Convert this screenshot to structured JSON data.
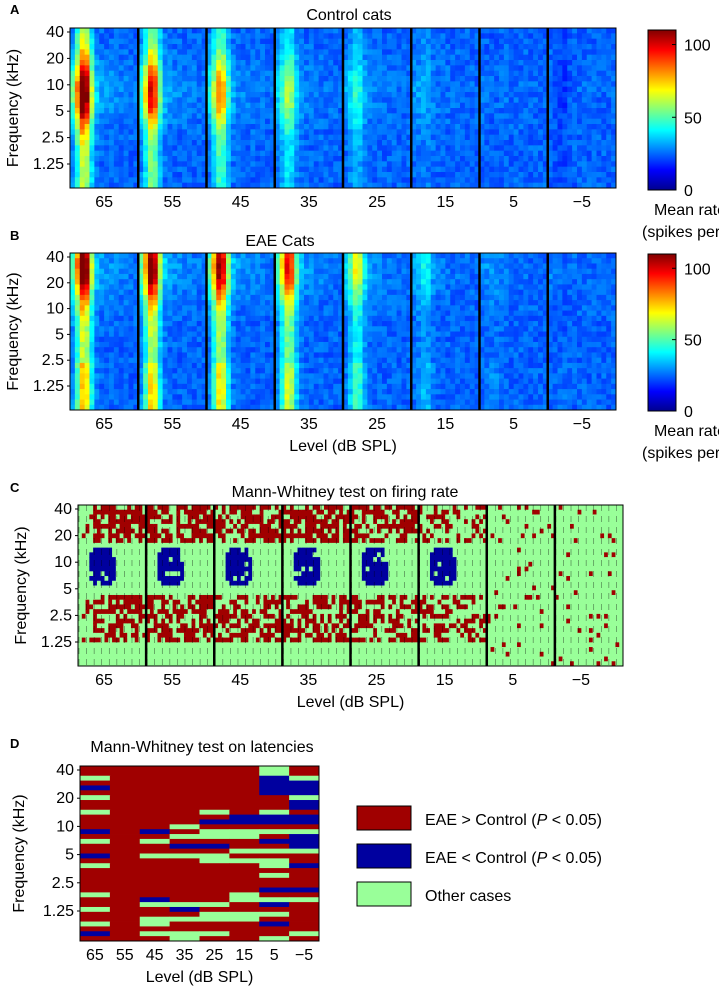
{
  "figure": {
    "panel_labels": [
      "A",
      "B",
      "C",
      "D"
    ]
  },
  "chart_data": [
    {
      "type": "heatmap",
      "panel": "A",
      "title": "Control cats",
      "xlabel": "",
      "ylabel": "Frequency (kHz)",
      "x_ticks": [
        "65",
        "55",
        "45",
        "35",
        "25",
        "15",
        "5",
        "−5"
      ],
      "y_ticks": [
        "40",
        "20",
        "10",
        "5",
        "2.5",
        "1.25"
      ],
      "levels_db_spl": [
        65,
        55,
        45,
        35,
        25,
        15,
        5,
        -5
      ],
      "freq_ticks_khz": [
        40,
        20,
        10,
        5,
        2.5,
        1.25
      ],
      "colorbar": {
        "range": [
          0,
          110
        ],
        "ticks": [
          "0",
          "50",
          "100"
        ],
        "label_line1": "Mean rate",
        "label_line2": "(spikes per s)"
      },
      "peak_rate_by_level": [
        110,
        90,
        75,
        55,
        40,
        28,
        20,
        15
      ],
      "peak_frequency_khz_by_level": [
        10,
        10,
        10,
        10,
        12,
        12,
        10,
        10
      ]
    },
    {
      "type": "heatmap",
      "panel": "B",
      "title": "EAE Cats",
      "xlabel": "Level (dB SPL)",
      "ylabel": "Frequency (kHz)",
      "x_ticks": [
        "65",
        "55",
        "45",
        "35",
        "25",
        "15",
        "5",
        "−5"
      ],
      "y_ticks": [
        "40",
        "20",
        "10",
        "5",
        "2.5",
        "1.25"
      ],
      "levels_db_spl": [
        65,
        55,
        45,
        35,
        25,
        15,
        5,
        -5
      ],
      "freq_ticks_khz": [
        40,
        20,
        10,
        5,
        2.5,
        1.25
      ],
      "colorbar": {
        "range": [
          0,
          110
        ],
        "ticks": [
          "0",
          "50",
          "100"
        ],
        "label_line1": "Mean rate",
        "label_line2": "(spikes per s)"
      },
      "peak_rate_by_level": [
        110,
        105,
        100,
        90,
        60,
        35,
        25,
        20
      ],
      "peak_frequency_khz_by_level": [
        30,
        30,
        30,
        30,
        30,
        30,
        30,
        30
      ]
    },
    {
      "type": "heatmap",
      "panel": "C",
      "title": "Mann-Whitney test on firing rate",
      "xlabel": "Level (dB SPL)",
      "ylabel": "Frequency (kHz)",
      "x_ticks": [
        "65",
        "55",
        "45",
        "35",
        "25",
        "15",
        "5",
        "−5"
      ],
      "y_ticks": [
        "40",
        "20",
        "10",
        "5",
        "2.5",
        "1.25"
      ],
      "levels_db_spl": [
        65,
        55,
        45,
        35,
        25,
        15,
        5,
        -5
      ],
      "categories": [
        "EAE > Control (P < 0.05)",
        "EAE < Control (P < 0.05)",
        "Other cases"
      ]
    },
    {
      "type": "heatmap",
      "panel": "D",
      "title": "Mann-Whitney test on latencies",
      "xlabel": "Level (dB SPL)",
      "ylabel": "Frequency (kHz)",
      "x_ticks": [
        "65",
        "55",
        "45",
        "35",
        "25",
        "15",
        "5",
        "−5"
      ],
      "y_ticks": [
        "40",
        "20",
        "10",
        "5",
        "2.5",
        "1.25"
      ],
      "levels_db_spl": [
        65,
        55,
        45,
        35,
        25,
        15,
        5,
        -5
      ],
      "categories": [
        "EAE > Control (P < 0.05)",
        "EAE < Control (P < 0.05)",
        "Other cases"
      ],
      "rows_top_to_bottom_codes": "0 = EAE>Control, 1 = EAE<Control, 2 = other",
      "grid": [
        [
          0,
          0,
          0,
          0,
          0,
          0,
          2,
          0
        ],
        [
          0,
          0,
          0,
          0,
          0,
          0,
          2,
          0
        ],
        [
          2,
          0,
          0,
          0,
          0,
          0,
          1,
          2
        ],
        [
          0,
          0,
          0,
          0,
          0,
          0,
          1,
          1
        ],
        [
          1,
          0,
          0,
          0,
          0,
          0,
          1,
          1
        ],
        [
          0,
          0,
          0,
          0,
          0,
          0,
          1,
          1
        ],
        [
          2,
          0,
          0,
          0,
          0,
          0,
          0,
          2
        ],
        [
          0,
          0,
          0,
          0,
          0,
          0,
          0,
          1
        ],
        [
          0,
          0,
          0,
          0,
          0,
          0,
          0,
          1
        ],
        [
          2,
          0,
          0,
          0,
          2,
          0,
          2,
          0
        ],
        [
          0,
          0,
          0,
          0,
          0,
          1,
          1,
          1
        ],
        [
          0,
          0,
          0,
          0,
          1,
          1,
          1,
          1
        ],
        [
          0,
          0,
          0,
          2,
          0,
          0,
          0,
          0
        ],
        [
          1,
          0,
          1,
          0,
          2,
          2,
          2,
          2
        ],
        [
          0,
          0,
          0,
          2,
          2,
          2,
          0,
          1
        ],
        [
          2,
          0,
          2,
          0,
          0,
          0,
          1,
          1
        ],
        [
          0,
          0,
          0,
          1,
          1,
          0,
          0,
          1
        ],
        [
          0,
          0,
          0,
          0,
          0,
          2,
          2,
          2
        ],
        [
          1,
          0,
          2,
          2,
          2,
          0,
          0,
          0
        ],
        [
          0,
          0,
          0,
          0,
          2,
          2,
          2,
          0
        ],
        [
          2,
          0,
          0,
          0,
          0,
          0,
          2,
          1
        ],
        [
          0,
          0,
          0,
          0,
          0,
          0,
          0,
          0
        ],
        [
          0,
          0,
          0,
          0,
          0,
          0,
          2,
          0
        ],
        [
          0,
          0,
          0,
          0,
          0,
          0,
          0,
          0
        ],
        [
          0,
          0,
          0,
          0,
          0,
          0,
          0,
          0
        ],
        [
          0,
          0,
          0,
          0,
          0,
          0,
          1,
          1
        ],
        [
          2,
          0,
          0,
          0,
          0,
          2,
          0,
          0
        ],
        [
          0,
          0,
          1,
          0,
          0,
          2,
          2,
          2
        ],
        [
          0,
          0,
          2,
          2,
          2,
          0,
          1,
          0
        ],
        [
          2,
          0,
          0,
          1,
          0,
          0,
          0,
          0
        ],
        [
          0,
          0,
          0,
          0,
          2,
          2,
          2,
          0
        ],
        [
          0,
          0,
          2,
          2,
          2,
          2,
          0,
          0
        ],
        [
          2,
          0,
          2,
          0,
          0,
          0,
          1,
          0
        ],
        [
          0,
          0,
          0,
          0,
          0,
          0,
          0,
          0
        ],
        [
          1,
          0,
          2,
          2,
          2,
          0,
          0,
          2
        ],
        [
          0,
          0,
          0,
          2,
          0,
          0,
          2,
          0
        ]
      ]
    }
  ],
  "legend": {
    "items": [
      {
        "label": "EAE > Control  (",
        "italic": "P",
        "suffix": " < 0.05)",
        "color": "#A00000"
      },
      {
        "label": "EAE < Control  (",
        "italic": "P",
        "suffix": " < 0.05)",
        "color": "#00009F"
      },
      {
        "label": "Other cases",
        "italic": "",
        "suffix": "",
        "color": "#99FF99"
      }
    ]
  }
}
